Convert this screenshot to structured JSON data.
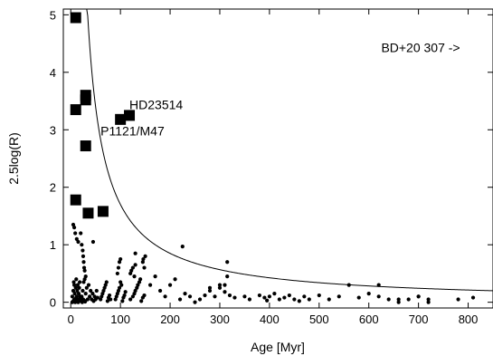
{
  "chart_data": {
    "type": "scatter",
    "title": "",
    "xlabel": "Age [Myr]",
    "ylabel": "2.5log(R)",
    "xlim": [
      -15,
      850
    ],
    "ylim": [
      -0.1,
      5.1
    ],
    "xticks": [
      0,
      100,
      200,
      300,
      400,
      500,
      600,
      700,
      800
    ],
    "yticks": [
      0,
      1,
      2,
      3,
      4,
      5
    ],
    "grid": false,
    "annotations": [
      {
        "text": "HD23514",
        "x": 118,
        "y": 3.36
      },
      {
        "text": "P1121/M47",
        "x": 60,
        "y": 2.9
      },
      {
        "text": "BD+20 307 ->",
        "x": 625,
        "y": 4.35
      }
    ],
    "squares": {
      "x": [
        10,
        10,
        10,
        30,
        30,
        30,
        35,
        65,
        100,
        118
      ],
      "y": [
        4.95,
        3.35,
        1.78,
        3.6,
        3.52,
        2.72,
        1.55,
        1.58,
        3.18,
        3.25
      ]
    },
    "points": {
      "x": [
        3,
        5,
        6,
        7,
        8,
        9,
        10,
        11,
        12,
        13,
        14,
        15,
        16,
        17,
        18,
        19,
        20,
        3,
        5,
        7,
        9,
        11,
        13,
        15,
        17,
        19,
        21,
        23,
        25,
        27,
        29,
        22,
        24,
        26,
        28,
        30,
        32,
        34,
        36,
        38,
        40,
        42,
        44,
        46,
        48,
        50,
        52,
        54,
        60,
        62,
        64,
        66,
        68,
        70,
        72,
        74,
        76,
        78,
        80,
        20,
        22,
        24,
        25,
        26,
        27,
        28,
        30,
        5,
        7,
        9,
        12,
        15,
        90,
        92,
        94,
        96,
        98,
        100,
        102,
        104,
        106,
        108,
        110,
        94,
        96,
        98,
        100,
        120,
        125,
        128,
        130,
        133,
        135,
        138,
        140,
        142,
        145,
        148,
        120,
        122,
        125,
        128,
        130,
        145,
        146,
        148,
        150,
        160,
        170,
        180,
        190,
        200,
        210,
        220,
        230,
        240,
        250,
        260,
        270,
        280,
        290,
        300,
        310,
        315,
        280,
        300,
        310,
        320,
        330,
        400,
        410,
        420,
        430,
        440,
        450,
        460,
        470,
        480,
        350,
        360,
        380,
        390,
        395,
        500,
        520,
        540,
        560,
        580,
        600,
        620,
        640,
        660,
        680,
        700,
        720,
        620,
        660,
        700,
        720,
        780,
        810,
        225,
        315,
        130,
        35,
        45
      ],
      "y": [
        0.1,
        0.2,
        0.35,
        0.3,
        0.15,
        0.05,
        0.25,
        0.4,
        0.1,
        0.2,
        0.3,
        0.05,
        0.15,
        0.25,
        0.35,
        0.1,
        0.05,
        0.0,
        0.02,
        0.05,
        0.0,
        0.08,
        0.02,
        0.0,
        0.05,
        0.1,
        0.02,
        0.0,
        0.05,
        0.03,
        0.01,
        0.1,
        0.2,
        0.35,
        0.4,
        0.15,
        0.25,
        0.05,
        0.3,
        0.1,
        0.2,
        0.05,
        0.15,
        0.02,
        0.1,
        0.05,
        0.2,
        0.08,
        0.05,
        0.1,
        0.15,
        0.2,
        0.25,
        0.3,
        0.35,
        0.02,
        0.08,
        0.12,
        0.05,
        1.2,
        1.0,
        0.9,
        0.8,
        0.7,
        0.6,
        0.55,
        0.45,
        1.35,
        1.3,
        1.2,
        1.1,
        1.05,
        0.05,
        0.1,
        0.15,
        0.2,
        0.25,
        0.35,
        0.3,
        0.02,
        0.08,
        0.12,
        0.18,
        0.5,
        0.6,
        0.7,
        0.75,
        0.05,
        0.1,
        0.15,
        0.2,
        0.25,
        0.3,
        0.35,
        0.4,
        0.02,
        0.08,
        0.12,
        0.5,
        0.55,
        0.6,
        0.45,
        0.65,
        0.7,
        0.75,
        0.6,
        0.8,
        0.3,
        0.45,
        0.2,
        0.1,
        0.3,
        0.4,
        0.05,
        0.15,
        0.1,
        0.0,
        0.05,
        0.12,
        0.2,
        0.1,
        0.25,
        0.3,
        0.45,
        0.25,
        0.3,
        0.18,
        0.12,
        0.08,
        0.1,
        0.15,
        0.05,
        0.08,
        0.12,
        0.05,
        0.02,
        0.1,
        0.05,
        0.1,
        0.05,
        0.12,
        0.08,
        0.03,
        0.12,
        0.05,
        0.1,
        0.3,
        0.08,
        0.15,
        0.1,
        0.05,
        0.0,
        0.05,
        0.1,
        0.05,
        0.3,
        0.05,
        0.1,
        0.0,
        0.05,
        0.08,
        0.97,
        0.7,
        0.85,
        1.6,
        1.05
      ]
    },
    "curve": {
      "formula": "y = 170 / x",
      "x_range": [
        30,
        850
      ]
    }
  }
}
